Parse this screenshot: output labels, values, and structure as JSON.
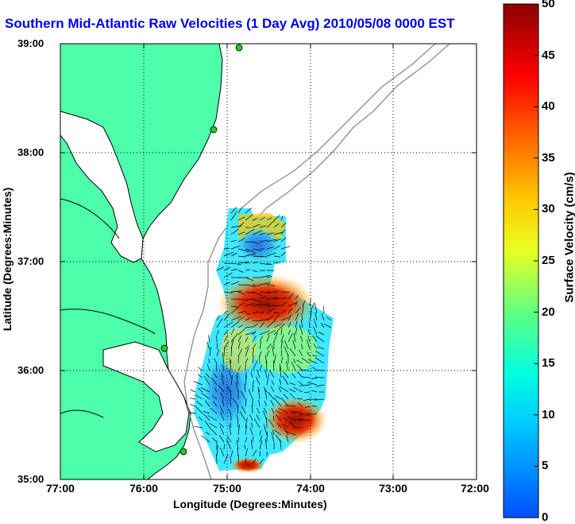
{
  "title": "Southern Mid-Atlantic Raw Velocities (1 Day Avg) 2010/05/08 0000 EST",
  "axes": {
    "xlabel": "Longitude (Degrees:Minutes)",
    "ylabel": "Latitude (Degrees:Minutes)",
    "xticks": [
      "77:00",
      "76:00",
      "75:00",
      "74:00",
      "73:00",
      "72:00"
    ],
    "yticks": [
      "39:00",
      "38:00",
      "37:00",
      "36:00",
      "35:00"
    ]
  },
  "colorbar": {
    "label": "Surface Velocity (cm/s)",
    "ticks": [
      "50",
      "45",
      "40",
      "35",
      "30",
      "25",
      "20",
      "15",
      "10",
      "5",
      "0"
    ],
    "range": [
      0,
      50
    ],
    "colors": [
      "#0050ff",
      "#00c8ff",
      "#00ffe0",
      "#60ff80",
      "#e8ff20",
      "#ffc800",
      "#ff6400",
      "#ff0000",
      "#8c0000"
    ]
  },
  "colors": {
    "land": "#4dffaa",
    "water": "#ffffff",
    "coast": "#000000",
    "bathymetry": "#8c8c8c",
    "grid": "#000000",
    "station": "#22cc22"
  }
}
